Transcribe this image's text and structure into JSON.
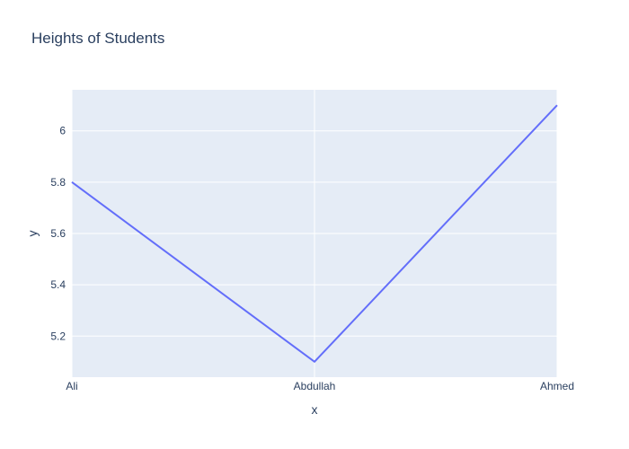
{
  "chart_data": {
    "type": "line",
    "title": "Heights of Students",
    "xlabel": "x",
    "ylabel": "y",
    "categories": [
      "Ali",
      "Abdullah",
      "Ahmed"
    ],
    "series": [
      {
        "values": [
          5.8,
          5.1,
          6.1
        ]
      }
    ],
    "ylim": [
      5.04,
      6.16
    ],
    "yticks": [
      5.2,
      5.4,
      5.6,
      5.8,
      6
    ],
    "ytick_labels": [
      "5.2",
      "5.4",
      "5.6",
      "5.8",
      "6"
    ],
    "grid": true,
    "legend": "none",
    "colors": {
      "line": "#636efa",
      "plot_bg": "#e5ecf6",
      "grid": "#ffffff",
      "text": "#2a3f5f"
    }
  }
}
